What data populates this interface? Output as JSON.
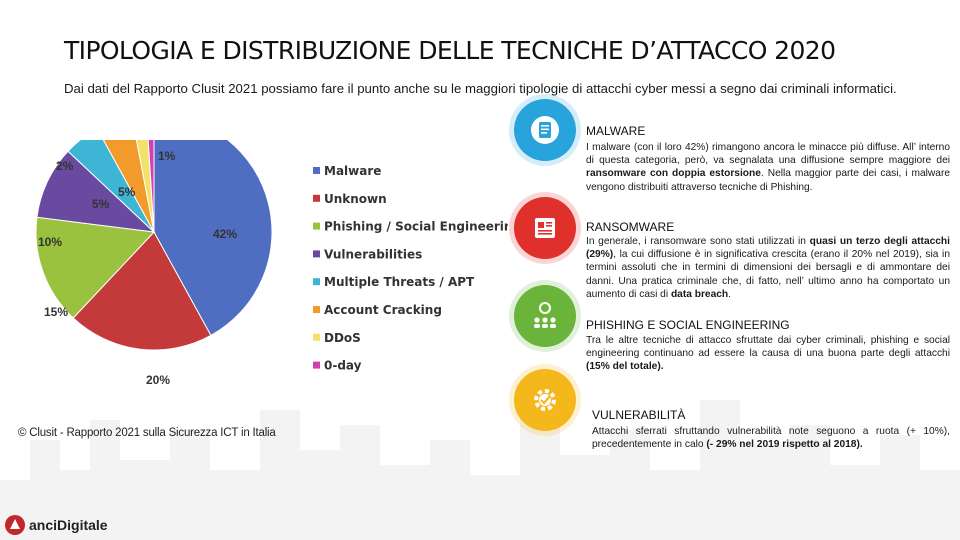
{
  "title": "TIPOLOGIA E DISTRIBUZIONE DELLE TECNICHE D’ATTACCO 2020",
  "intro": "Dai dati del Rapporto Clusit 2021 possiamo fare il punto anche su le maggiori tipologie di attacchi cyber messi a segno dai criminali informatici.",
  "chart_data": {
    "type": "pie",
    "categories": [
      "Malware",
      "Unknown",
      "Phishing / Social Engineering",
      "Vulnerabilities",
      "Multiple Threats / APT",
      "Account Cracking",
      "DDoS",
      "0-day"
    ],
    "values": [
      42,
      20,
      15,
      10,
      5,
      5,
      2,
      1
    ],
    "labels": [
      "42%",
      "20%",
      "15%",
      "10%",
      "5%",
      "5%",
      "2%",
      "1%"
    ],
    "colors": [
      "#4f6ec2",
      "#c43a3a",
      "#9bc23e",
      "#6a4aa0",
      "#3fb5d6",
      "#f39a2c",
      "#f3e26a",
      "#d43fb0"
    ],
    "legend": "right"
  },
  "copyright": "© Clusit - Rapporto 2021 sulla Sicurezza ICT in Italia",
  "sections": [
    {
      "icon": "document-icon",
      "color": "#29a3dc",
      "title": "MALWARE",
      "text_parts": [
        {
          "t": "I malware (con il loro 42%) rimangono ancora le minacce più diffuse. All’ interno di questa categoria, però, va segnalata una diffusione sempre maggiore dei ",
          "b": false
        },
        {
          "t": "ransomware con doppia estorsione",
          "b": true
        },
        {
          "t": ". Nella maggior parte dei casi, i malware vengono distribuiti attraverso tecniche di Phishing.",
          "b": false
        }
      ]
    },
    {
      "icon": "newspaper-icon",
      "color": "#e0302b",
      "title": "RANSOMWARE",
      "text_parts": [
        {
          "t": "In generale, i ransomware sono stati utilizzati in ",
          "b": false
        },
        {
          "t": "quasi un terzo degli attacchi (29%)",
          "b": true
        },
        {
          "t": ", la cui diffusione è in significativa crescita (erano il 20% nel 2019), sia in termini assoluti che in termini di dimensioni dei bersagli e di ammontare dei danni. Una pratica criminale che, di fatto, nell’ ultimo anno ha comportato un aumento di casi di ",
          "b": false
        },
        {
          "t": "data breach",
          "b": true
        },
        {
          "t": ".",
          "b": false
        }
      ]
    },
    {
      "icon": "people-network-icon",
      "color": "#6ab43b",
      "title": "PHISHING E SOCIAL ENGINEERING",
      "text_parts": [
        {
          "t": "Tra le altre tecniche di attacco sfruttate dai cyber criminali, phishing e social engineering continuano ad essere la causa di una buona parte degli attacchi ",
          "b": false
        },
        {
          "t": "(15% del totale).",
          "b": true
        }
      ]
    },
    {
      "icon": "gear-check-icon",
      "color": "#f5b81c",
      "title": "VULNERABILITÀ",
      "text_parts": [
        {
          "t": "Attacchi sferrati sfruttando vulnerabilità note seguono a ruota (+ 10%), precedentemente in calo ",
          "b": false
        },
        {
          "t": "(- 29% nel 2019 rispetto al 2018).",
          "b": true
        }
      ]
    }
  ],
  "logo": {
    "text": "anciDigitale",
    "icon": "logo-mark-icon",
    "color": "#c0282d"
  }
}
